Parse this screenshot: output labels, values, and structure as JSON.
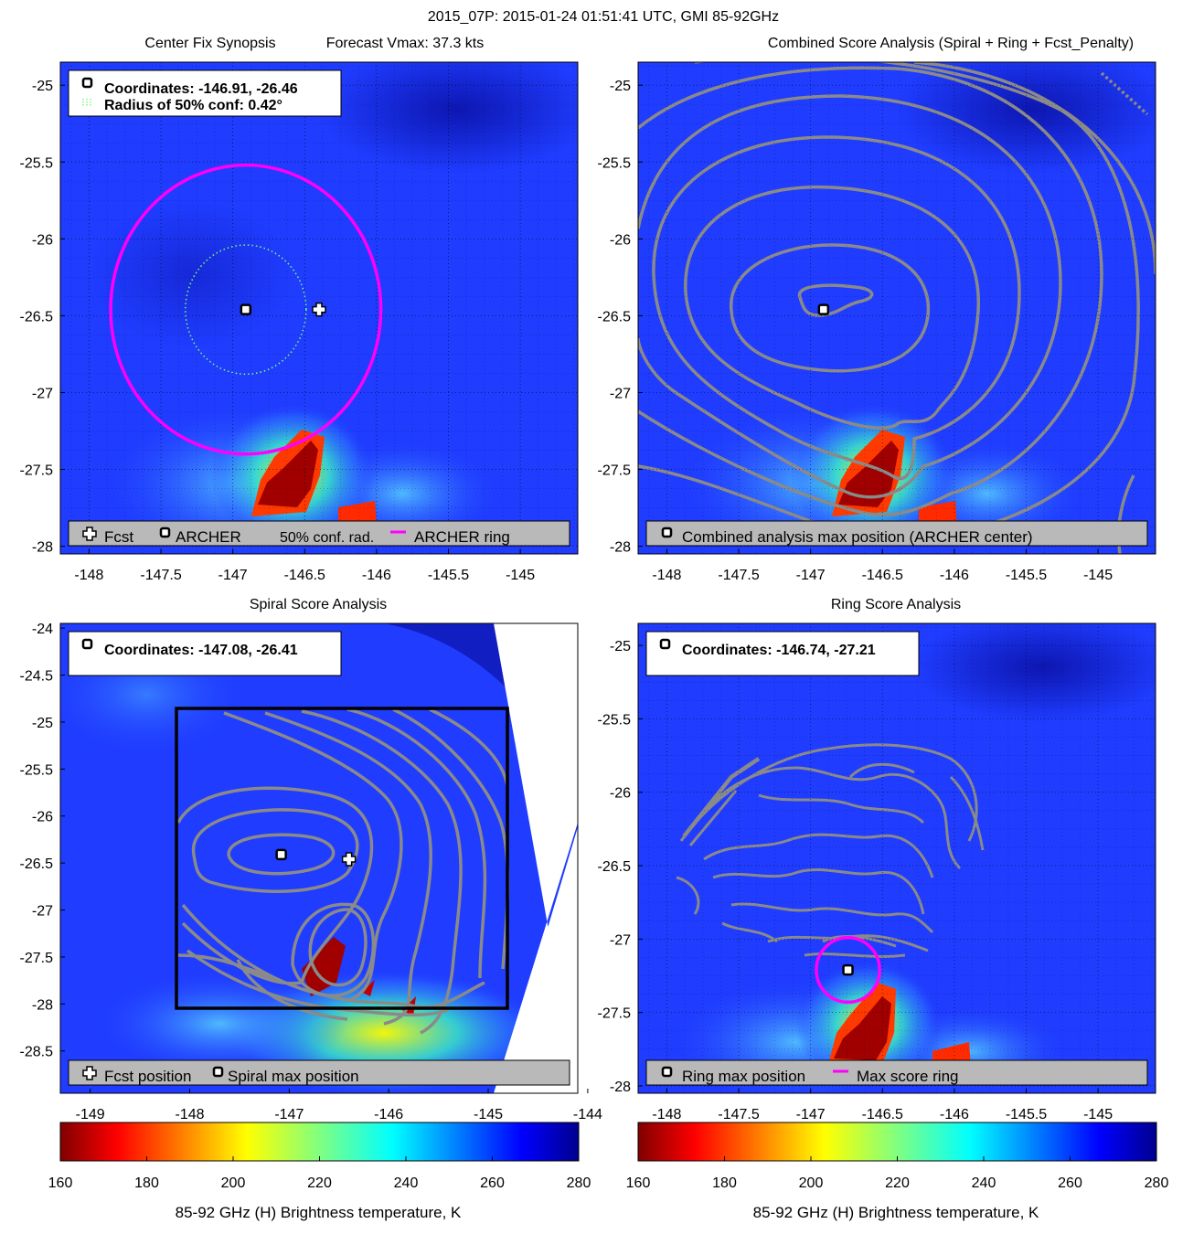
{
  "suptitle": "2015_07P: 2015-01-24 01:51:41 UTC, GMI 85-92GHz",
  "colors": {
    "ring": "#ff00ff",
    "contour": "#8a8a8a",
    "legend_bg": "#b9b9b9",
    "box": "#000000"
  },
  "colormap": {
    "name": "jet",
    "reversed": true,
    "range": [
      160,
      280
    ]
  },
  "colorbars": [
    {
      "ticks": [
        "160",
        "180",
        "200",
        "220",
        "240",
        "260",
        "280"
      ],
      "label": "85-92 GHz (H) Brightness temperature, K"
    },
    {
      "ticks": [
        "160",
        "180",
        "200",
        "220",
        "240",
        "260",
        "280"
      ],
      "label": "85-92 GHz (H) Brightness temperature, K"
    }
  ],
  "chart_data": [
    {
      "type": "heatmap",
      "title_left": "Center Fix Synopsis",
      "title_right": "Forecast Vmax: 37.3 kts",
      "xlim": [
        -148.2,
        -144.6
      ],
      "ylim": [
        -28.05,
        -24.85
      ],
      "xticks": [
        "-148",
        "-147.5",
        "-147",
        "-146.5",
        "-146",
        "-145.5",
        "-145"
      ],
      "yticks": [
        "-25",
        "-25.5",
        "-26",
        "-26.5",
        "-27",
        "-27.5",
        "-28"
      ],
      "grid": true,
      "info_box": {
        "coordinates": "Coordinates: -146.91, -26.46",
        "radius": "Radius of 50% conf: 0.42°"
      },
      "archer_center": [
        -146.91,
        -26.46
      ],
      "forecast_position": [
        -146.4,
        -26.46
      ],
      "confidence_radius_deg": 0.42,
      "ring_radius_deg": 0.94,
      "legend": {
        "position": "bottom",
        "items": [
          "Fcst",
          "ARCHER",
          "50% conf. rad.",
          "ARCHER ring"
        ]
      }
    },
    {
      "type": "heatmap",
      "title": "Combined Score Analysis (Spiral + Ring + Fcst_Penalty)",
      "xlim": [
        -148.2,
        -144.6
      ],
      "ylim": [
        -28.05,
        -24.85
      ],
      "xticks": [
        "-148",
        "-147.5",
        "-147",
        "-146.5",
        "-146",
        "-145.5",
        "-145"
      ],
      "yticks": [
        "-25",
        "-25.5",
        "-26",
        "-26.5",
        "-27",
        "-27.5",
        "-28"
      ],
      "grid": true,
      "max_position": [
        -146.91,
        -26.46
      ],
      "legend": {
        "position": "bottom",
        "items": [
          "Combined analysis max position (ARCHER center)"
        ]
      }
    },
    {
      "type": "heatmap",
      "title": "Spiral Score Analysis",
      "xlim": [
        -149.3,
        -144.1
      ],
      "ylim": [
        -28.95,
        -23.95
      ],
      "xticks": [
        "-149",
        "-148",
        "-147",
        "-146",
        "-145",
        "-144"
      ],
      "yticks": [
        "-24",
        "-24.5",
        "-25",
        "-25.5",
        "-26",
        "-26.5",
        "-27",
        "-27.5",
        "-28",
        "-28.5"
      ],
      "grid": false,
      "info_box": {
        "coordinates": "Coordinates: -147.08, -26.41"
      },
      "max_position": [
        -147.08,
        -26.41
      ],
      "forecast_position": [
        -146.4,
        -26.46
      ],
      "search_box": {
        "x": [
          -148.05,
          -144.5
        ],
        "y": [
          -28.05,
          -24.85
        ]
      },
      "legend": {
        "position": "bottom",
        "items": [
          "Fcst position",
          "Spiral max position"
        ]
      }
    },
    {
      "type": "heatmap",
      "title": "Ring Score Analysis",
      "xlim": [
        -148.2,
        -144.6
      ],
      "ylim": [
        -28.05,
        -24.85
      ],
      "xticks": [
        "-148",
        "-147.5",
        "-147",
        "-146.5",
        "-146",
        "-145.5",
        "-145"
      ],
      "yticks": [
        "-25",
        "-25.5",
        "-26",
        "-26.5",
        "-27",
        "-27.5",
        "-28"
      ],
      "grid": true,
      "info_box": {
        "coordinates": "Coordinates: -146.74, -27.21"
      },
      "max_position": [
        -146.74,
        -27.21
      ],
      "max_ring_radius_deg": 0.22,
      "legend": {
        "position": "bottom",
        "items": [
          "Ring max position",
          "Max score ring"
        ]
      }
    }
  ]
}
